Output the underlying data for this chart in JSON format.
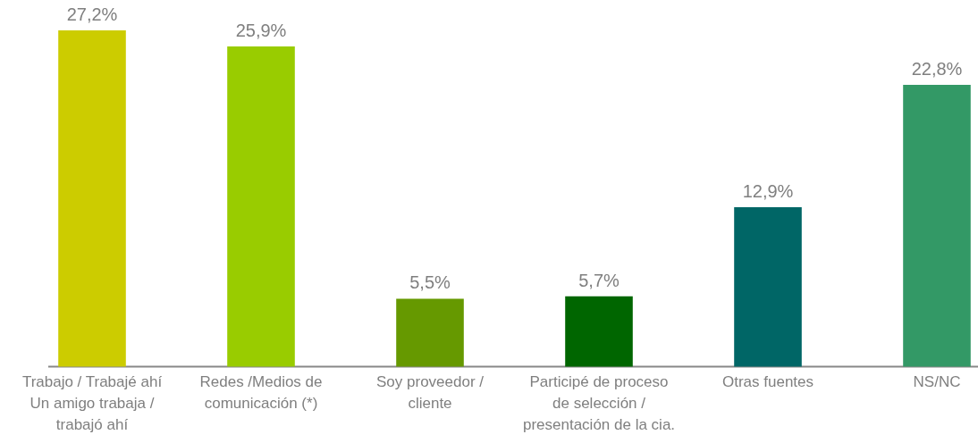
{
  "chart_data": {
    "type": "bar",
    "categories": [
      "Trabajo / Trabajé ahí Un amigo trabaja / trabajó ahí",
      "Redes /Medios de comunicación (*)",
      "Soy proveedor / cliente",
      "Participé de proceso de selección / presentación de la cia.",
      "Otras fuentes",
      "NS/NC"
    ],
    "values": [
      27.2,
      25.9,
      5.5,
      5.7,
      12.9,
      22.8
    ],
    "colors": [
      "#cccc00",
      "#99cc00",
      "#669900",
      "#006600",
      "#006666",
      "#339966"
    ],
    "value_labels": [
      "27,2%",
      "25,9%",
      "5,5%",
      "5,7%",
      "12,9%",
      "22,8%"
    ]
  }
}
